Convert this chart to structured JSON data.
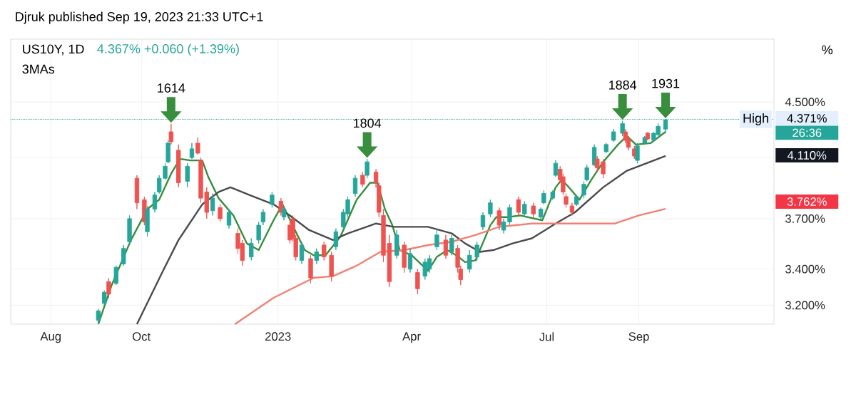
{
  "chart_data": {
    "type": "candlestick",
    "title": "Djruk published Sep 19, 2023 21:33 UTC+1",
    "subtitle": "US10Y, 1D",
    "x": [
      "2022-09-02",
      "2022-09-06",
      "2022-09-09",
      "2022-09-14",
      "2022-09-19",
      "2022-09-23",
      "2022-09-28",
      "2022-10-03",
      "2022-10-05",
      "2022-10-10",
      "2022-10-13",
      "2022-10-17",
      "2022-10-19",
      "2022-10-21",
      "2022-10-26",
      "2022-11-01",
      "2022-11-04",
      "2022-11-08",
      "2022-11-10",
      "2022-11-14",
      "2022-11-18",
      "2022-11-23",
      "2022-11-29",
      "2022-12-05",
      "2022-12-08",
      "2022-12-14",
      "2022-12-19",
      "2022-12-22",
      "2022-12-28",
      "2023-01-03",
      "2023-01-05",
      "2023-01-09",
      "2023-01-11",
      "2023-01-13",
      "2023-01-17",
      "2023-01-23",
      "2023-01-27",
      "2023-02-01",
      "2023-02-06",
      "2023-02-09",
      "2023-02-14",
      "2023-02-17",
      "2023-02-22",
      "2023-02-27",
      "2023-03-02",
      "2023-03-08",
      "2023-03-10",
      "2023-03-13",
      "2023-03-17",
      "2023-03-22",
      "2023-03-27",
      "2023-03-31",
      "2023-04-05",
      "2023-04-10",
      "2023-04-13",
      "2023-04-18",
      "2023-04-24",
      "2023-04-28",
      "2023-05-02",
      "2023-05-04",
      "2023-05-10",
      "2023-05-15",
      "2023-05-19",
      "2023-05-24",
      "2023-05-30",
      "2023-06-02",
      "2023-06-06",
      "2023-06-12",
      "2023-06-16",
      "2023-06-22",
      "2023-06-27",
      "2023-06-29",
      "2023-07-05",
      "2023-07-07",
      "2023-07-10",
      "2023-07-12",
      "2023-07-14",
      "2023-07-18",
      "2023-07-21",
      "2023-07-26",
      "2023-07-28",
      "2023-08-02",
      "2023-08-04",
      "2023-08-08",
      "2023-08-10",
      "2023-08-15",
      "2023-08-21",
      "2023-08-23",
      "2023-08-25",
      "2023-08-29",
      "2023-08-31",
      "2023-09-05",
      "2023-09-07",
      "2023-09-11",
      "2023-09-14",
      "2023-09-19"
    ],
    "ohlc": [
      [
        3.12,
        3.18,
        3.1,
        3.17
      ],
      [
        3.21,
        3.28,
        3.2,
        3.27
      ],
      [
        3.33,
        3.35,
        3.24,
        3.26
      ],
      [
        3.32,
        3.42,
        3.31,
        3.41
      ],
      [
        3.43,
        3.54,
        3.42,
        3.52
      ],
      [
        3.56,
        3.72,
        3.55,
        3.7
      ],
      [
        3.96,
        3.98,
        3.76,
        3.8
      ],
      [
        3.82,
        3.84,
        3.66,
        3.68
      ],
      [
        3.62,
        3.78,
        3.59,
        3.76
      ],
      [
        3.76,
        3.87,
        3.74,
        3.85
      ],
      [
        3.87,
        3.98,
        3.86,
        3.96
      ],
      [
        3.96,
        4.06,
        3.95,
        4.04
      ],
      [
        4.07,
        4.22,
        4.06,
        4.2
      ],
      [
        4.28,
        4.338,
        4.19,
        4.21
      ],
      [
        4.15,
        4.19,
        3.9,
        3.93
      ],
      [
        3.94,
        4.06,
        3.9,
        4.04
      ],
      [
        4.1,
        4.2,
        4.09,
        4.16
      ],
      [
        4.2,
        4.24,
        4.12,
        4.13
      ],
      [
        4.08,
        4.1,
        3.8,
        3.83
      ],
      [
        3.87,
        3.9,
        3.7,
        3.74
      ],
      [
        3.75,
        3.86,
        3.72,
        3.83
      ],
      [
        3.77,
        3.79,
        3.68,
        3.7
      ],
      [
        3.66,
        3.76,
        3.64,
        3.74
      ],
      [
        3.61,
        3.64,
        3.49,
        3.52
      ],
      [
        3.55,
        3.57,
        3.42,
        3.45
      ],
      [
        3.47,
        3.58,
        3.45,
        3.55
      ],
      [
        3.57,
        3.68,
        3.55,
        3.66
      ],
      [
        3.68,
        3.76,
        3.66,
        3.74
      ],
      [
        3.79,
        3.87,
        3.77,
        3.85
      ],
      [
        3.81,
        3.83,
        3.72,
        3.74
      ],
      [
        3.71,
        3.78,
        3.69,
        3.76
      ],
      [
        3.66,
        3.68,
        3.55,
        3.57
      ],
      [
        3.7,
        3.72,
        3.56,
        3.58
      ],
      [
        3.58,
        3.6,
        3.45,
        3.47
      ],
      [
        3.45,
        3.56,
        3.43,
        3.54
      ],
      [
        3.46,
        3.48,
        3.32,
        3.35
      ],
      [
        3.45,
        3.52,
        3.43,
        3.5
      ],
      [
        3.54,
        3.56,
        3.45,
        3.47
      ],
      [
        3.48,
        3.5,
        3.33,
        3.36
      ],
      [
        3.53,
        3.64,
        3.51,
        3.62
      ],
      [
        3.65,
        3.76,
        3.63,
        3.74
      ],
      [
        3.73,
        3.84,
        3.71,
        3.82
      ],
      [
        3.86,
        3.98,
        3.84,
        3.96
      ],
      [
        3.98,
        4.0,
        3.9,
        3.92
      ],
      [
        3.98,
        4.09,
        3.96,
        4.07
      ],
      [
        4.0,
        4.02,
        3.9,
        3.93
      ],
      [
        3.91,
        3.93,
        3.71,
        3.74
      ],
      [
        3.72,
        3.76,
        3.44,
        3.48
      ],
      [
        3.55,
        3.6,
        3.3,
        3.33
      ],
      [
        3.48,
        3.63,
        3.46,
        3.6
      ],
      [
        3.54,
        3.56,
        3.38,
        3.41
      ],
      [
        3.4,
        3.52,
        3.38,
        3.49
      ],
      [
        3.38,
        3.4,
        3.26,
        3.29
      ],
      [
        3.36,
        3.46,
        3.34,
        3.44
      ],
      [
        3.4,
        3.48,
        3.38,
        3.46
      ],
      [
        3.53,
        3.64,
        3.51,
        3.6
      ],
      [
        3.57,
        3.6,
        3.46,
        3.48
      ],
      [
        3.5,
        3.6,
        3.48,
        3.58
      ],
      [
        3.52,
        3.54,
        3.38,
        3.41
      ],
      [
        3.4,
        3.42,
        3.31,
        3.34
      ],
      [
        3.4,
        3.51,
        3.38,
        3.48
      ],
      [
        3.47,
        3.56,
        3.45,
        3.54
      ],
      [
        3.65,
        3.74,
        3.63,
        3.72
      ],
      [
        3.73,
        3.82,
        3.71,
        3.8
      ],
      [
        3.75,
        3.77,
        3.63,
        3.66
      ],
      [
        3.63,
        3.7,
        3.61,
        3.68
      ],
      [
        3.68,
        3.79,
        3.66,
        3.77
      ],
      [
        3.82,
        3.84,
        3.72,
        3.74
      ],
      [
        3.73,
        3.81,
        3.71,
        3.79
      ],
      [
        3.78,
        3.8,
        3.71,
        3.73
      ],
      [
        3.71,
        3.77,
        3.69,
        3.76
      ],
      [
        3.8,
        3.88,
        3.79,
        3.86
      ],
      [
        3.83,
        3.88,
        3.82,
        3.87
      ],
      [
        3.98,
        4.08,
        3.97,
        4.06
      ],
      [
        4.02,
        4.04,
        3.93,
        3.95
      ],
      [
        3.97,
        3.99,
        3.85,
        3.87
      ],
      [
        3.84,
        3.86,
        3.77,
        3.79
      ],
      [
        3.78,
        3.8,
        3.72,
        3.74
      ],
      [
        3.79,
        3.85,
        3.78,
        3.84
      ],
      [
        3.85,
        3.94,
        3.83,
        3.92
      ],
      [
        3.95,
        4.05,
        3.94,
        4.03
      ],
      [
        4.05,
        4.19,
        4.04,
        4.17
      ],
      [
        4.09,
        4.11,
        4.0,
        4.03
      ],
      [
        4.07,
        4.09,
        3.96,
        3.99
      ],
      [
        4.14,
        4.2,
        4.13,
        4.19
      ],
      [
        4.22,
        4.3,
        4.21,
        4.28
      ],
      [
        4.27,
        4.36,
        4.25,
        4.34
      ],
      [
        4.28,
        4.3,
        4.2,
        4.22
      ],
      [
        4.23,
        4.25,
        4.15,
        4.17
      ],
      [
        4.16,
        4.18,
        4.09,
        4.11
      ],
      [
        4.08,
        4.2,
        4.06,
        4.18
      ],
      [
        4.2,
        4.25,
        4.19,
        4.24
      ],
      [
        4.27,
        4.28,
        4.22,
        4.23
      ],
      [
        4.22,
        4.28,
        4.21,
        4.27
      ],
      [
        4.26,
        4.34,
        4.25,
        4.32
      ],
      [
        4.3,
        4.371,
        4.27,
        4.367
      ]
    ],
    "colors": [
      "#26a69a",
      "#26a69a",
      "#ef5350",
      "#26a69a",
      "#26a69a",
      "#26a69a",
      "#ef5350",
      "#ef5350",
      "#26a69a",
      "#26a69a",
      "#26a69a",
      "#26a69a",
      "#26a69a",
      "#ef5350",
      "#ef5350",
      "#26a69a",
      "#26a69a",
      "#ef5350",
      "#ef5350",
      "#ef5350",
      "#26a69a",
      "#ef5350",
      "#26a69a",
      "#ef5350",
      "#ef5350",
      "#26a69a",
      "#26a69a",
      "#26a69a",
      "#26a69a",
      "#ef5350",
      "#26a69a",
      "#ef5350",
      "#ef5350",
      "#ef5350",
      "#26a69a",
      "#ef5350",
      "#26a69a",
      "#ef5350",
      "#ef5350",
      "#26a69a",
      "#26a69a",
      "#26a69a",
      "#26a69a",
      "#ef5350",
      "#26a69a",
      "#ef5350",
      "#ef5350",
      "#ef5350",
      "#ef5350",
      "#26a69a",
      "#ef5350",
      "#26a69a",
      "#ef5350",
      "#26a69a",
      "#26a69a",
      "#26a69a",
      "#ef5350",
      "#26a69a",
      "#ef5350",
      "#ef5350",
      "#26a69a",
      "#26a69a",
      "#26a69a",
      "#26a69a",
      "#ef5350",
      "#26a69a",
      "#26a69a",
      "#ef5350",
      "#26a69a",
      "#ef5350",
      "#26a69a",
      "#26a69a",
      "#26a69a",
      "#26a69a",
      "#ef5350",
      "#ef5350",
      "#ef5350",
      "#ef5350",
      "#26a69a",
      "#26a69a",
      "#26a69a",
      "#26a69a",
      "#ef5350",
      "#ef5350",
      "#26a69a",
      "#26a69a",
      "#26a69a",
      "#ef5350",
      "#ef5350",
      "#ef5350",
      "#26a69a",
      "#26a69a",
      "#ef5350",
      "#26a69a",
      "#26a69a",
      "#26a69a"
    ],
    "series": [
      {
        "type": "line",
        "color": "#388e3c",
        "x": [
          "2022-09-02",
          "2022-09-11",
          "2022-09-24",
          "2022-10-05",
          "2022-10-13",
          "2022-10-21",
          "2022-10-27",
          "2022-11-03",
          "2022-11-11",
          "2022-11-15",
          "2022-11-22",
          "2022-12-02",
          "2022-12-11",
          "2022-12-19",
          "2022-12-29",
          "2023-01-04",
          "2023-01-19",
          "2023-01-25",
          "2023-02-02",
          "2023-02-12",
          "2023-02-23",
          "2023-03-04",
          "2023-03-09",
          "2023-03-14",
          "2023-03-19",
          "2023-03-24",
          "2023-04-01",
          "2023-04-12",
          "2023-04-18",
          "2023-04-25",
          "2023-05-01",
          "2023-05-07",
          "2023-05-14",
          "2023-05-24",
          "2023-05-28",
          "2023-06-05",
          "2023-06-13",
          "2023-06-28",
          "2023-07-07",
          "2023-07-11",
          "2023-07-15",
          "2023-07-23",
          "2023-07-31",
          "2023-08-08",
          "2023-08-18",
          "2023-08-24",
          "2023-08-30",
          "2023-09-09",
          "2023-09-19"
        ],
        "values": [
          3.1,
          3.31,
          3.57,
          3.76,
          3.82,
          3.99,
          4.09,
          4.08,
          4.08,
          3.97,
          3.83,
          3.72,
          3.55,
          3.51,
          3.69,
          3.79,
          3.51,
          3.48,
          3.48,
          3.59,
          3.82,
          3.93,
          3.93,
          3.76,
          3.66,
          3.51,
          3.48,
          3.39,
          3.47,
          3.51,
          3.48,
          3.44,
          3.45,
          3.66,
          3.71,
          3.71,
          3.72,
          3.69,
          3.9,
          3.95,
          3.91,
          3.82,
          3.95,
          4.07,
          4.19,
          4.25,
          4.19,
          4.2,
          4.28
        ]
      },
      {
        "type": "line",
        "color": "#4a4a4f",
        "x": [
          "2022-09-28",
          "2022-10-15",
          "2022-10-26",
          "2022-11-11",
          "2022-11-22",
          "2022-11-30",
          "2022-12-13",
          "2022-12-29",
          "2023-01-09",
          "2023-01-22",
          "2023-02-07",
          "2023-02-17",
          "2023-03-08",
          "2023-03-20",
          "2023-04-12",
          "2023-04-28",
          "2023-05-07",
          "2023-05-17",
          "2023-05-26",
          "2023-06-08",
          "2023-06-21",
          "2023-07-07",
          "2023-07-20",
          "2023-08-08",
          "2023-08-24",
          "2023-09-19"
        ],
        "values": [
          3.1,
          3.38,
          3.57,
          3.79,
          3.87,
          3.9,
          3.85,
          3.79,
          3.72,
          3.63,
          3.57,
          3.61,
          3.67,
          3.65,
          3.65,
          3.61,
          3.55,
          3.5,
          3.51,
          3.55,
          3.58,
          3.67,
          3.74,
          3.9,
          4.01,
          4.11
        ]
      },
      {
        "type": "line",
        "color": "#f28072",
        "x": [
          "2022-12-03",
          "2022-12-29",
          "2023-01-25",
          "2023-02-07",
          "2023-02-23",
          "2023-03-11",
          "2023-03-27",
          "2023-04-12",
          "2023-04-28",
          "2023-05-14",
          "2023-05-30",
          "2023-06-21",
          "2023-07-07",
          "2023-07-31",
          "2023-08-16",
          "2023-09-01",
          "2023-09-19"
        ],
        "values": [
          3.1,
          3.24,
          3.35,
          3.36,
          3.42,
          3.5,
          3.51,
          3.54,
          3.56,
          3.6,
          3.65,
          3.67,
          3.67,
          3.67,
          3.67,
          3.72,
          3.762
        ]
      }
    ],
    "xlim": [
      "2022-07-05",
      "2023-12-01"
    ],
    "xticks": [
      {
        "value": "2022-08-01",
        "label": "Aug"
      },
      {
        "value": "2022-10-01",
        "label": "Oct"
      },
      {
        "value": "2023-01-01",
        "label": "2023"
      },
      {
        "value": "2023-04-01",
        "label": "Apr"
      },
      {
        "value": "2023-07-01",
        "label": "Jul"
      },
      {
        "value": "2023-09-01",
        "label": "Sep"
      }
    ],
    "log": true,
    "ylim": [
      3.1,
      5.0
    ],
    "yticks": [
      {
        "value": 3.2,
        "label": "3.200%"
      },
      {
        "value": 3.4,
        "label": "3.400%"
      },
      {
        "value": 3.7,
        "label": "3.700%"
      },
      {
        "value": 4.1,
        "label": null
      },
      {
        "value": 4.5,
        "label": "4.500%"
      }
    ],
    "grid": true,
    "ref_lines": [
      {
        "axis": "y",
        "value": 4.371,
        "label": "High",
        "color": "#26a69a",
        "line_style": "dotted"
      }
    ],
    "annotations": [
      "4.367%  +0.060 (+1.39%)",
      "3MAs",
      "%",
      {
        "text": "1614",
        "x": "2022-10-21",
        "y": 4.338
      },
      {
        "text": "1804",
        "x": "2023-03-02",
        "y": 4.09
      },
      {
        "text": "1884",
        "x": "2023-08-21",
        "y": 4.36
      },
      {
        "text": "1931",
        "x": "2023-09-19",
        "y": 4.371
      },
      "4.371%",
      "26:36",
      "4.110%",
      "3.762%"
    ]
  }
}
